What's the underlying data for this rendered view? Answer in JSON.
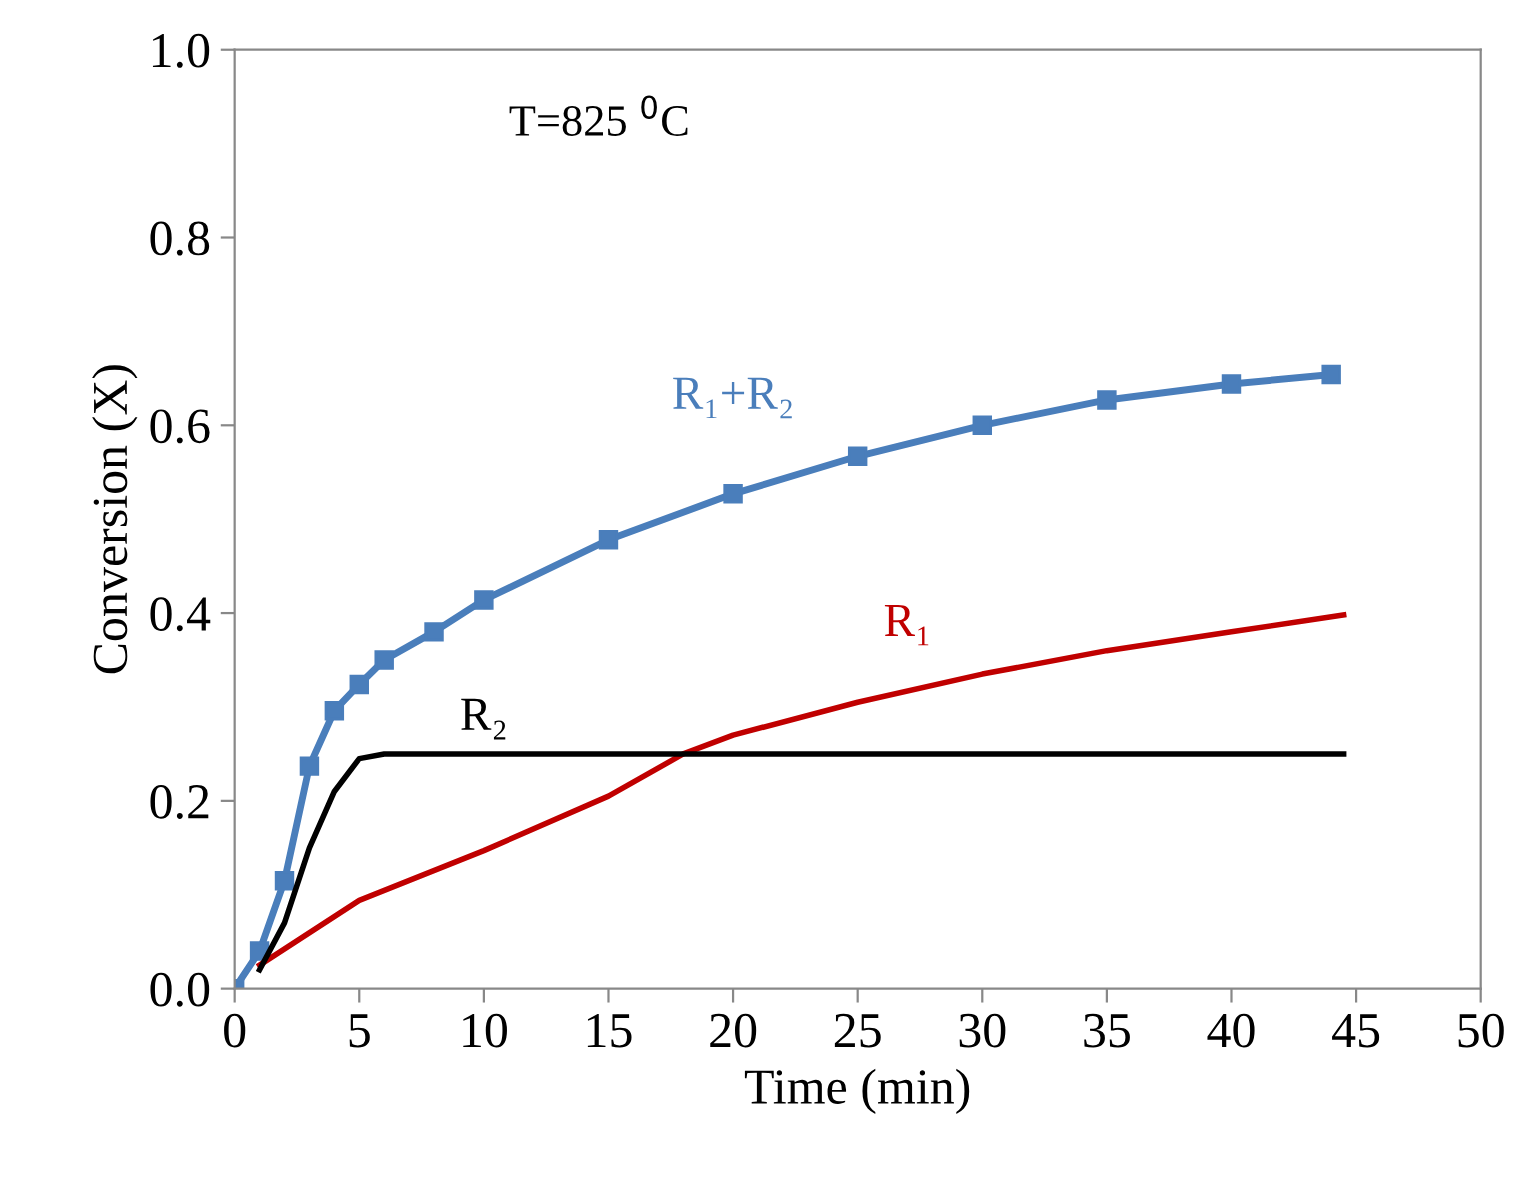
{
  "chart_data": {
    "type": "line",
    "xlabel": "Time (min)",
    "ylabel": "Conversion (X)",
    "xlim": [
      0,
      50
    ],
    "xticks": [
      0,
      5,
      10,
      15,
      20,
      25,
      30,
      35,
      40,
      45,
      50
    ],
    "ylim": [
      0,
      1.0
    ],
    "yticks": [
      {
        "value": 0,
        "label": "0.0"
      },
      {
        "value": 0.2,
        "label": "0.2"
      },
      {
        "value": 0.4,
        "label": "0.4"
      },
      {
        "value": 0.6,
        "label": "0.6"
      },
      {
        "value": 0.8,
        "label": "0.8"
      },
      {
        "value": 1.0,
        "label": "1.0"
      }
    ],
    "grid": false,
    "legend": false,
    "annotations": [
      "T=825 $^{0}$C"
    ],
    "series": [
      {
        "name": "R₁+R₂",
        "color": "#4a7ebb",
        "marker": "square",
        "x": [
          0,
          1,
          2,
          3,
          4,
          5,
          6,
          8,
          10,
          15,
          20,
          25,
          30,
          35,
          40,
          44
        ],
        "values": [
          0,
          0.04,
          0.115,
          0.237,
          0.296,
          0.324,
          0.35,
          0.38,
          0.414,
          0.478,
          0.527,
          0.567,
          0.6,
          0.627,
          0.644,
          0.654
        ]
      },
      {
        "name": "R₁",
        "color": "#c00000",
        "x": [
          1,
          5,
          10,
          15,
          18,
          20,
          25,
          30,
          35,
          40,
          44.5
        ],
        "values": [
          0.025,
          0.094,
          0.147,
          0.205,
          0.25,
          0.27,
          0.305,
          0.335,
          0.36,
          0.38,
          0.398
        ]
      },
      {
        "name": "R₂",
        "color": "#000000",
        "x": [
          1,
          2,
          3,
          4,
          5,
          6,
          44.5
        ],
        "values": [
          0.02,
          0.07,
          0.15,
          0.21,
          0.245,
          0.25,
          0.25
        ]
      }
    ]
  }
}
